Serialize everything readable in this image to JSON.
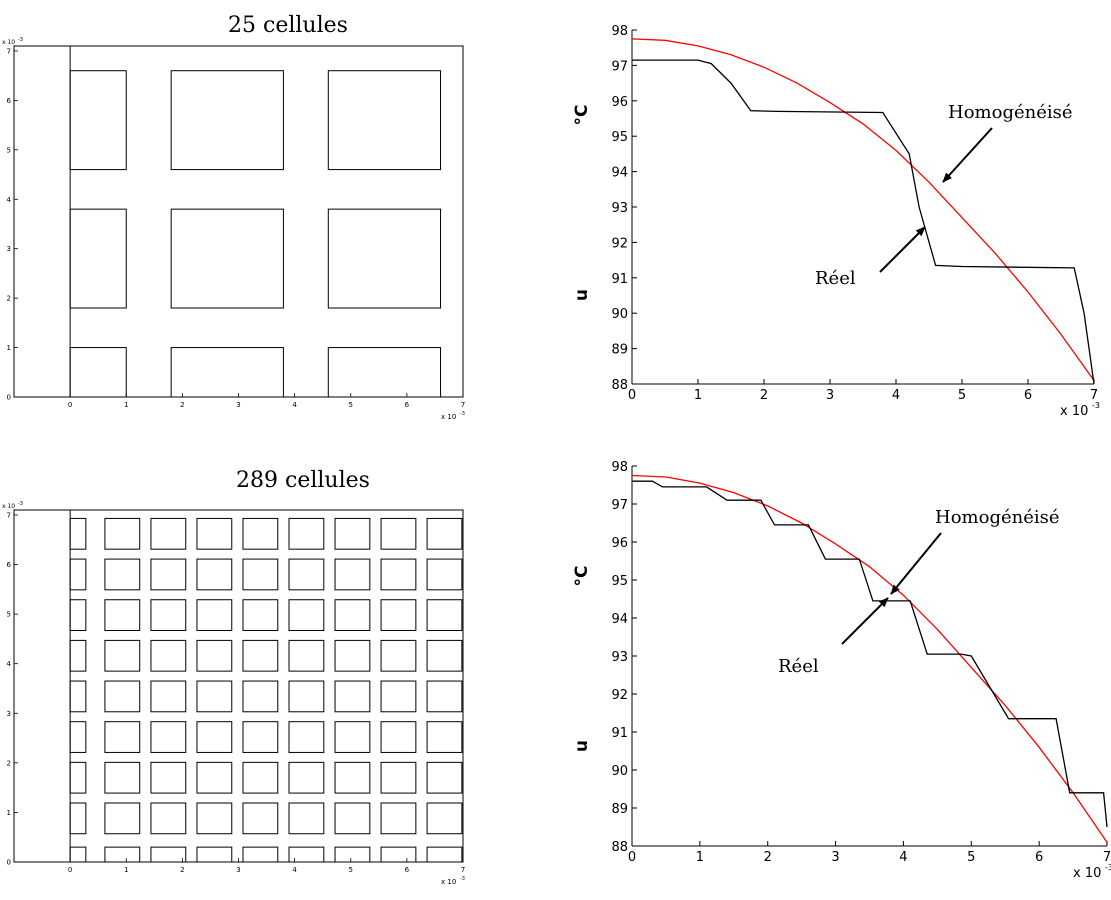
{
  "panels": [
    {
      "title": "25 cellules",
      "cells": 25,
      "x_ticks": [
        "0",
        "1",
        "2",
        "3",
        "4",
        "5",
        "6",
        "7"
      ],
      "y_ticks": [
        "0",
        "1",
        "2",
        "3",
        "4",
        "5",
        "6",
        "7"
      ],
      "x_exponent": "x 10",
      "y_exponent": "x 10",
      "exponent_power": "-3"
    },
    {
      "title": "289 cellules",
      "cells": 289,
      "x_ticks": [
        "0",
        "1",
        "2",
        "3",
        "4",
        "5",
        "6",
        "7"
      ],
      "y_ticks": [
        "0",
        "1",
        "2",
        "3",
        "4",
        "5",
        "6",
        "7"
      ],
      "x_exponent": "x 10",
      "y_exponent": "x 10",
      "exponent_power": "-3"
    }
  ],
  "chart_data": [
    {
      "type": "line",
      "ylabel_left": "u",
      "ylabel_right": "°C",
      "x_exponent": "x 10",
      "exponent_power": "-3",
      "xlim": [
        0,
        7
      ],
      "ylim": [
        88,
        98
      ],
      "x_ticks": [
        "0",
        "1",
        "2",
        "3",
        "4",
        "5",
        "6",
        "7"
      ],
      "y_ticks": [
        "88",
        "89",
        "90",
        "91",
        "92",
        "93",
        "94",
        "95",
        "96",
        "97",
        "98"
      ],
      "annotations": {
        "homog": "Homogénéisé",
        "reel": "Réel"
      },
      "series": [
        {
          "name": "Homogénéisé",
          "color": "#ff0000",
          "x": [
            0,
            0.5,
            1,
            1.5,
            2,
            2.5,
            3,
            3.5,
            4,
            4.5,
            5,
            5.5,
            6,
            6.5,
            7
          ],
          "y": [
            97.75,
            97.71,
            97.55,
            97.3,
            96.95,
            96.5,
            95.95,
            95.35,
            94.6,
            93.7,
            92.7,
            91.7,
            90.6,
            89.4,
            88.1
          ]
        },
        {
          "name": "Réel",
          "color": "#000000",
          "x": [
            0,
            1.0,
            1.2,
            1.5,
            1.8,
            2.2,
            3.8,
            4.2,
            4.35,
            4.6,
            5.0,
            6.7,
            6.85,
            7.0
          ],
          "y": [
            97.15,
            97.15,
            97.05,
            96.5,
            95.72,
            95.7,
            95.67,
            94.5,
            93.0,
            91.35,
            91.32,
            91.28,
            90.0,
            88.0
          ]
        }
      ]
    },
    {
      "type": "line",
      "ylabel_left": "u",
      "ylabel_right": "°C",
      "x_exponent": "x 10",
      "exponent_power": "-3",
      "xlim": [
        0,
        7
      ],
      "ylim": [
        88,
        98
      ],
      "x_ticks": [
        "0",
        "1",
        "2",
        "3",
        "4",
        "5",
        "6",
        "7"
      ],
      "y_ticks": [
        "88",
        "89",
        "90",
        "91",
        "92",
        "93",
        "94",
        "95",
        "96",
        "97",
        "98"
      ],
      "annotations": {
        "homog": "Homogénéisé",
        "reel": "Réel"
      },
      "series": [
        {
          "name": "Homogénéisé",
          "color": "#ff0000",
          "x": [
            0,
            0.5,
            1,
            1.5,
            2,
            2.5,
            3,
            3.5,
            4,
            4.5,
            5,
            5.5,
            6,
            6.5,
            7
          ],
          "y": [
            97.75,
            97.71,
            97.55,
            97.3,
            96.95,
            96.5,
            95.95,
            95.35,
            94.6,
            93.7,
            92.7,
            91.7,
            90.6,
            89.4,
            88.1
          ]
        },
        {
          "name": "Réel",
          "color": "#000000",
          "x": [
            0,
            0.3,
            0.45,
            1.1,
            1.4,
            1.9,
            2.1,
            2.6,
            2.85,
            3.35,
            3.55,
            4.1,
            4.35,
            4.85,
            5.0,
            5.55,
            5.75,
            6.25,
            6.45,
            6.95,
            7.0
          ],
          "y": [
            97.6,
            97.6,
            97.45,
            97.45,
            97.1,
            97.1,
            96.45,
            96.45,
            95.55,
            95.55,
            94.45,
            94.45,
            93.05,
            93.05,
            93.0,
            91.35,
            91.35,
            91.35,
            89.4,
            89.4,
            88.5
          ]
        }
      ]
    }
  ]
}
